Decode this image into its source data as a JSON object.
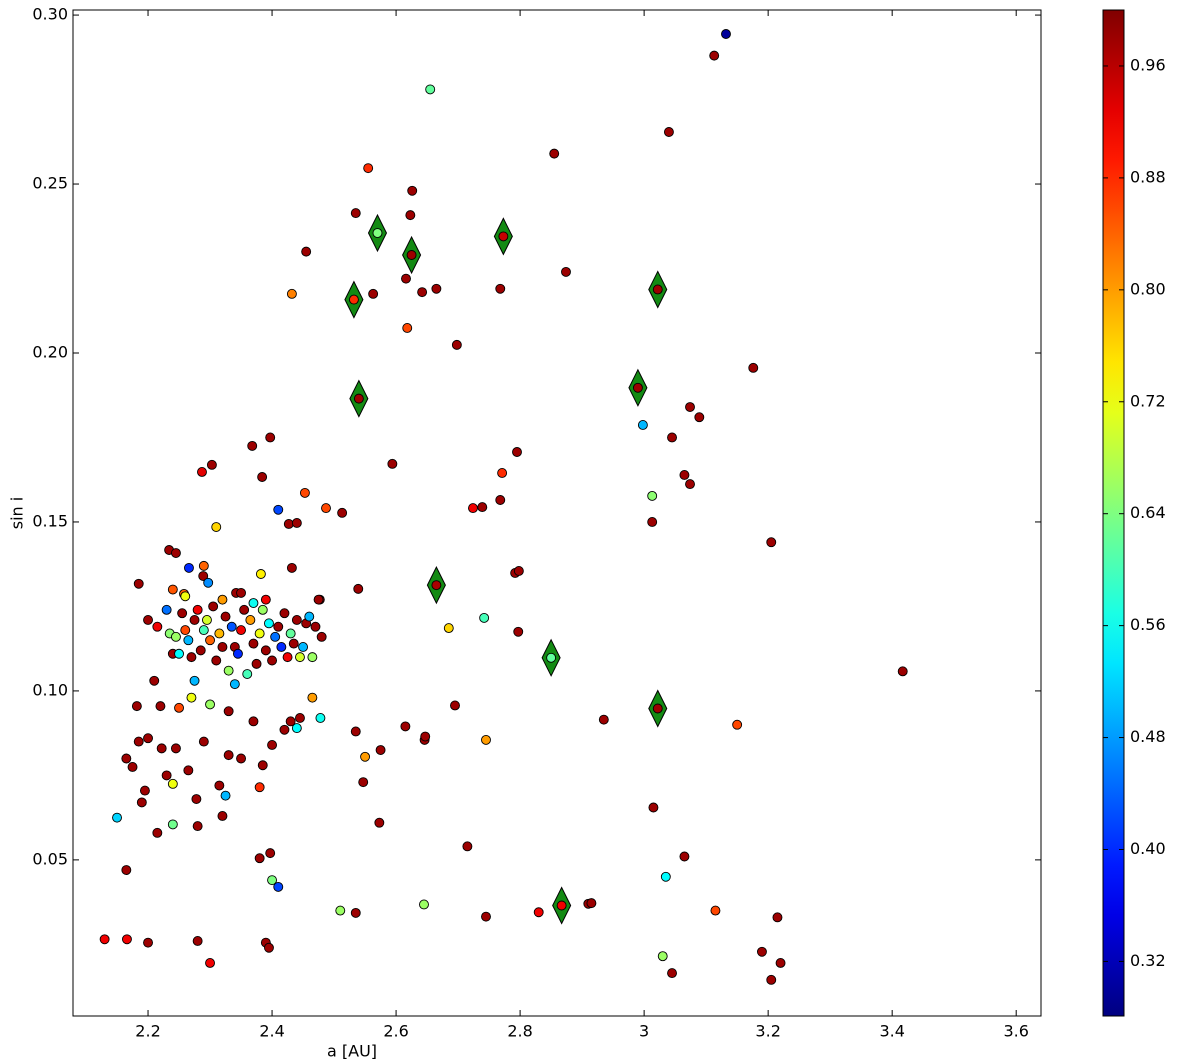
{
  "chart_data": {
    "type": "scatter",
    "xlabel": "a [AU]",
    "ylabel": "sin i",
    "xlim": [
      2.079,
      3.64
    ],
    "xticks": [
      2.2,
      2.4,
      2.6,
      2.8,
      3.0,
      3.2,
      3.4,
      3.6
    ],
    "ylim": [
      0.0038,
      0.3015
    ],
    "yticks": [
      0.05,
      {
        "value": 0.1,
        "label": "0.10"
      },
      0.15,
      {
        "value": 0.2,
        "label": "0.20"
      },
      0.25,
      {
        "value": 0.3,
        "label": "0.30"
      }
    ],
    "colorbar": {
      "colormap": "jet",
      "clim": [
        0.281,
        1.0
      ],
      "ticks": [
        0.32,
        {
          "value": 0.4,
          "label": "0.40"
        },
        0.48,
        0.56,
        0.64,
        0.72,
        {
          "value": 0.8,
          "label": "0.80"
        },
        0.88,
        0.96
      ]
    },
    "series": [
      {
        "marker": "circle",
        "x": [
          3.132,
          3.113,
          3.04,
          2.655,
          2.855,
          2.555,
          2.626,
          2.535,
          2.623,
          2.455,
          2.874,
          2.432,
          2.563,
          2.616,
          2.642,
          2.665,
          2.768,
          2.618,
          2.698,
          3.176,
          3.074,
          3.089,
          2.998,
          3.045,
          2.397,
          2.368,
          2.795,
          2.594,
          2.771,
          2.303,
          2.287,
          2.384,
          3.065,
          3.074,
          2.453,
          3.013,
          2.768,
          2.41,
          2.487,
          2.513,
          2.724,
          2.739,
          2.31,
          2.427,
          2.44,
          3.013,
          3.205,
          2.432,
          2.234,
          2.245,
          2.266,
          2.29,
          2.289,
          2.297,
          2.185,
          2.382,
          2.792,
          2.798,
          2.539,
          2.342,
          2.258,
          2.477,
          2.742,
          2.685,
          2.797,
          2.2,
          2.215,
          2.23,
          2.235,
          2.24,
          2.245,
          2.25,
          2.255,
          2.26,
          2.265,
          2.27,
          2.275,
          2.28,
          2.285,
          2.29,
          2.295,
          2.3,
          2.305,
          2.31,
          2.315,
          2.32,
          2.325,
          2.33,
          2.335,
          2.34,
          2.345,
          2.35,
          2.355,
          2.36,
          2.365,
          2.37,
          2.375,
          2.38,
          2.385,
          2.39,
          2.395,
          2.4,
          2.405,
          2.41,
          2.415,
          2.42,
          2.425,
          2.43,
          2.435,
          2.44,
          2.445,
          2.45,
          2.455,
          2.46,
          2.465,
          2.47,
          2.475,
          2.48,
          2.32,
          2.24,
          2.35,
          2.26,
          2.37,
          2.39,
          2.182,
          2.22,
          2.25,
          2.27,
          2.3,
          2.33,
          2.37,
          2.275,
          2.34,
          2.21,
          2.44,
          2.465,
          2.478,
          2.29,
          2.185,
          2.2,
          2.245,
          2.222,
          2.33,
          2.35,
          2.24,
          2.23,
          2.165,
          2.175,
          2.265,
          2.315,
          2.38,
          2.385,
          2.195,
          2.19,
          2.278,
          2.15,
          2.325,
          2.24,
          2.215,
          2.28,
          2.32,
          2.165,
          2.38,
          2.397,
          2.4,
          2.41,
          2.13,
          2.166,
          2.2,
          2.28,
          2.3,
          2.39,
          2.395,
          2.42,
          2.43,
          2.445,
          2.4,
          2.535,
          2.55,
          2.547,
          2.575,
          2.615,
          2.646,
          2.647,
          2.695,
          2.745,
          2.573,
          2.51,
          2.535,
          2.645,
          2.715,
          2.745,
          2.83,
          2.91,
          2.915,
          2.935,
          3.015,
          3.065,
          3.035,
          3.03,
          3.045,
          3.115,
          3.15,
          3.19,
          3.205,
          3.215,
          3.22,
          3.417
        ],
        "y": [
          0.2944,
          0.288,
          0.2654,
          0.278,
          0.259,
          0.2547,
          0.248,
          0.2414,
          0.2408,
          0.23,
          0.224,
          0.2175,
          0.2175,
          0.222,
          0.218,
          0.219,
          0.219,
          0.2074,
          0.2024,
          0.1956,
          0.184,
          0.181,
          0.1787,
          0.175,
          0.175,
          0.1725,
          0.1707,
          0.1672,
          0.1645,
          0.1669,
          0.1648,
          0.1633,
          0.1639,
          0.1612,
          0.1586,
          0.1577,
          0.1565,
          0.1536,
          0.1541,
          0.1527,
          0.1541,
          0.1544,
          0.1485,
          0.1494,
          0.1497,
          0.15,
          0.144,
          0.1364,
          0.1417,
          0.1408,
          0.1364,
          0.137,
          0.134,
          0.132,
          0.1317,
          0.1346,
          0.1349,
          0.1355,
          0.1302,
          0.129,
          0.1287,
          0.127,
          0.1216,
          0.1186,
          0.1175,
          0.121,
          0.119,
          0.124,
          0.117,
          0.111,
          0.116,
          0.111,
          0.123,
          0.118,
          0.115,
          0.11,
          0.121,
          0.124,
          0.112,
          0.118,
          0.121,
          0.115,
          0.125,
          0.109,
          0.117,
          0.113,
          0.122,
          0.106,
          0.119,
          0.113,
          0.111,
          0.118,
          0.124,
          0.105,
          0.121,
          0.114,
          0.108,
          0.117,
          0.124,
          0.112,
          0.12,
          0.109,
          0.116,
          0.119,
          0.113,
          0.123,
          0.11,
          0.117,
          0.114,
          0.121,
          0.11,
          0.113,
          0.12,
          0.122,
          0.11,
          0.119,
          0.127,
          0.116,
          0.127,
          0.13,
          0.129,
          0.128,
          0.126,
          0.127,
          0.0955,
          0.0955,
          0.095,
          0.098,
          0.096,
          0.094,
          0.091,
          0.103,
          0.102,
          0.103,
          0.089,
          0.098,
          0.092,
          0.085,
          0.085,
          0.086,
          0.083,
          0.083,
          0.081,
          0.08,
          0.0725,
          0.075,
          0.08,
          0.0775,
          0.0765,
          0.072,
          0.0715,
          0.078,
          0.0705,
          0.067,
          0.068,
          0.0625,
          0.069,
          0.0605,
          0.058,
          0.06,
          0.063,
          0.047,
          0.0505,
          0.052,
          0.044,
          0.042,
          0.0265,
          0.0265,
          0.0255,
          0.026,
          0.0195,
          0.0255,
          0.024,
          0.0885,
          0.091,
          0.092,
          0.084,
          0.088,
          0.0805,
          0.073,
          0.0825,
          0.0895,
          0.0855,
          0.0865,
          0.0957,
          0.0855,
          0.061,
          0.035,
          0.0343,
          0.0368,
          0.054,
          0.0332,
          0.0345,
          0.037,
          0.0372,
          0.0915,
          0.0655,
          0.051,
          0.045,
          0.0215,
          0.0165,
          0.035,
          0.09,
          0.0228,
          0.0145,
          0.033,
          0.0195,
          0.1058
        ],
        "c": [
          0.3,
          0.98,
          0.98,
          0.62,
          0.98,
          0.88,
          0.98,
          0.98,
          0.98,
          0.98,
          0.98,
          0.82,
          0.98,
          0.98,
          0.98,
          0.98,
          0.98,
          0.86,
          0.98,
          0.98,
          0.98,
          0.98,
          0.5,
          0.98,
          0.98,
          0.98,
          0.98,
          0.98,
          0.88,
          0.98,
          0.93,
          0.98,
          0.98,
          0.98,
          0.86,
          0.65,
          0.98,
          0.42,
          0.86,
          0.98,
          0.92,
          0.98,
          0.76,
          0.98,
          0.98,
          0.98,
          0.98,
          0.98,
          0.98,
          0.98,
          0.4,
          0.84,
          0.98,
          0.47,
          0.98,
          0.74,
          0.98,
          0.98,
          0.98,
          0.98,
          0.84,
          0.98,
          0.6,
          0.76,
          0.98,
          0.98,
          0.92,
          0.45,
          0.65,
          0.98,
          0.66,
          0.55,
          0.98,
          0.86,
          0.5,
          0.98,
          0.98,
          0.92,
          0.98,
          0.6,
          0.7,
          0.84,
          0.98,
          0.98,
          0.78,
          0.98,
          0.98,
          0.66,
          0.43,
          0.98,
          0.4,
          0.92,
          0.98,
          0.6,
          0.8,
          0.98,
          0.98,
          0.72,
          0.66,
          0.98,
          0.55,
          0.98,
          0.45,
          0.98,
          0.4,
          0.98,
          0.92,
          0.62,
          0.98,
          0.98,
          0.7,
          0.5,
          0.98,
          0.5,
          0.66,
          0.98,
          0.98,
          0.98,
          0.8,
          0.85,
          0.98,
          0.72,
          0.56,
          0.92,
          0.98,
          0.98,
          0.86,
          0.72,
          0.66,
          0.98,
          0.98,
          0.5,
          0.5,
          0.98,
          0.55,
          0.8,
          0.56,
          0.98,
          0.98,
          0.98,
          0.98,
          0.98,
          0.98,
          0.98,
          0.72,
          0.98,
          0.98,
          0.98,
          0.98,
          0.98,
          0.88,
          0.98,
          0.98,
          0.98,
          0.98,
          0.52,
          0.5,
          0.63,
          0.98,
          0.98,
          0.98,
          0.98,
          0.98,
          0.98,
          0.64,
          0.42,
          0.92,
          0.92,
          0.98,
          0.98,
          0.92,
          0.98,
          0.98,
          0.98,
          0.98,
          0.98,
          0.98,
          0.98,
          0.8,
          0.98,
          0.98,
          0.98,
          0.98,
          0.98,
          0.98,
          0.8,
          0.98,
          0.66,
          0.98,
          0.66,
          0.98,
          0.98,
          0.92,
          0.98,
          0.98,
          0.98,
          0.98,
          0.98,
          0.55,
          0.66,
          0.98,
          0.86,
          0.86,
          0.98,
          0.98,
          0.98,
          0.98,
          0.98
        ]
      },
      {
        "marker": "diamond",
        "color": "#138a13",
        "x": [
          2.57,
          2.625,
          2.773,
          2.532,
          3.022,
          2.54,
          2.99,
          2.665,
          2.85,
          3.022,
          2.867
        ],
        "y": [
          0.2355,
          0.229,
          0.2345,
          0.2158,
          0.2188,
          0.1865,
          0.1897,
          0.1313,
          0.1098,
          0.0948,
          0.0365
        ],
        "c": [
          0.64,
          0.98,
          0.95,
          0.88,
          0.98,
          0.98,
          0.98,
          0.97,
          0.62,
          0.98,
          0.92
        ]
      }
    ]
  }
}
